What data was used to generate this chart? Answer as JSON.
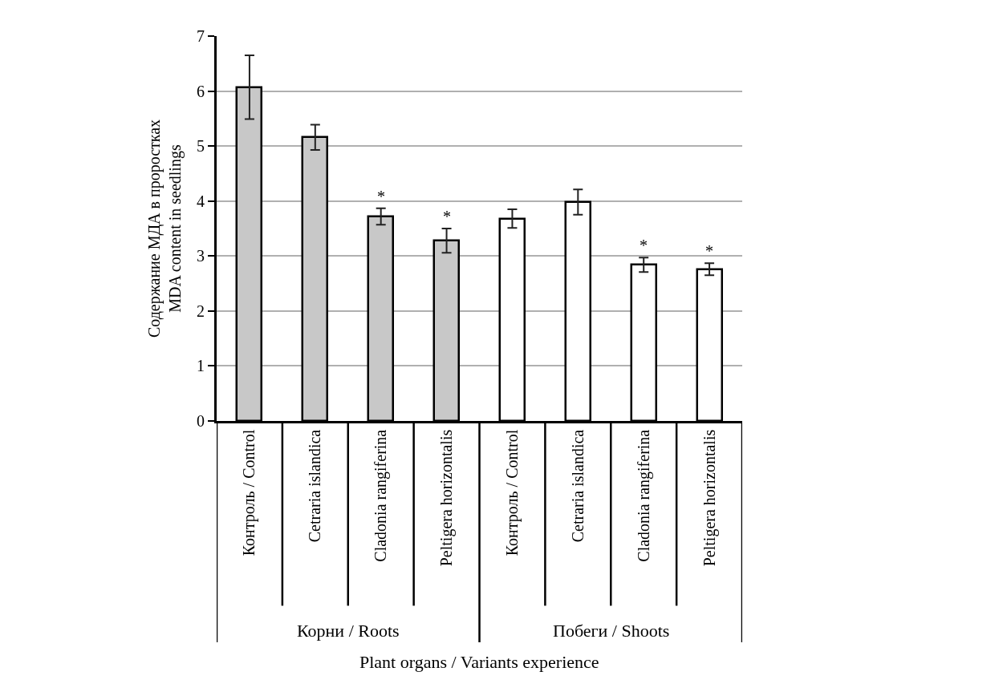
{
  "chart_data": {
    "type": "bar",
    "ylabel": "Содержание МДА в проростках\nMDA content in seedlings",
    "xlabel": "Plant organs / Variants experience",
    "categories": [
      "Контроль / Control",
      "Cetraria islandica",
      "Cladonia rangiferina",
      "Peltigera horizontalis",
      "Контроль / Control",
      "Cetraria islandica",
      "Cladonia rangiferina",
      "Peltigera horizontalis"
    ],
    "values": [
      6.07,
      5.16,
      3.72,
      3.28,
      3.68,
      3.98,
      2.84,
      2.76
    ],
    "errors": [
      0.58,
      0.23,
      0.15,
      0.22,
      0.17,
      0.23,
      0.13,
      0.11
    ],
    "colors": [
      "#c8c8c8",
      "#c8c8c8",
      "#c8c8c8",
      "#c8c8c8",
      "#ffffff",
      "#ffffff",
      "#ffffff",
      "#ffffff"
    ],
    "value_labels": [
      null,
      null,
      "*",
      "*",
      null,
      null,
      "*",
      "*"
    ],
    "annotations": [
      "Корни / Roots",
      "Побеги / Shoots"
    ],
    "ylim": [
      0,
      7
    ],
    "yticks": [
      0,
      1,
      2,
      3,
      4,
      5,
      6,
      7
    ],
    "grid": "y"
  }
}
